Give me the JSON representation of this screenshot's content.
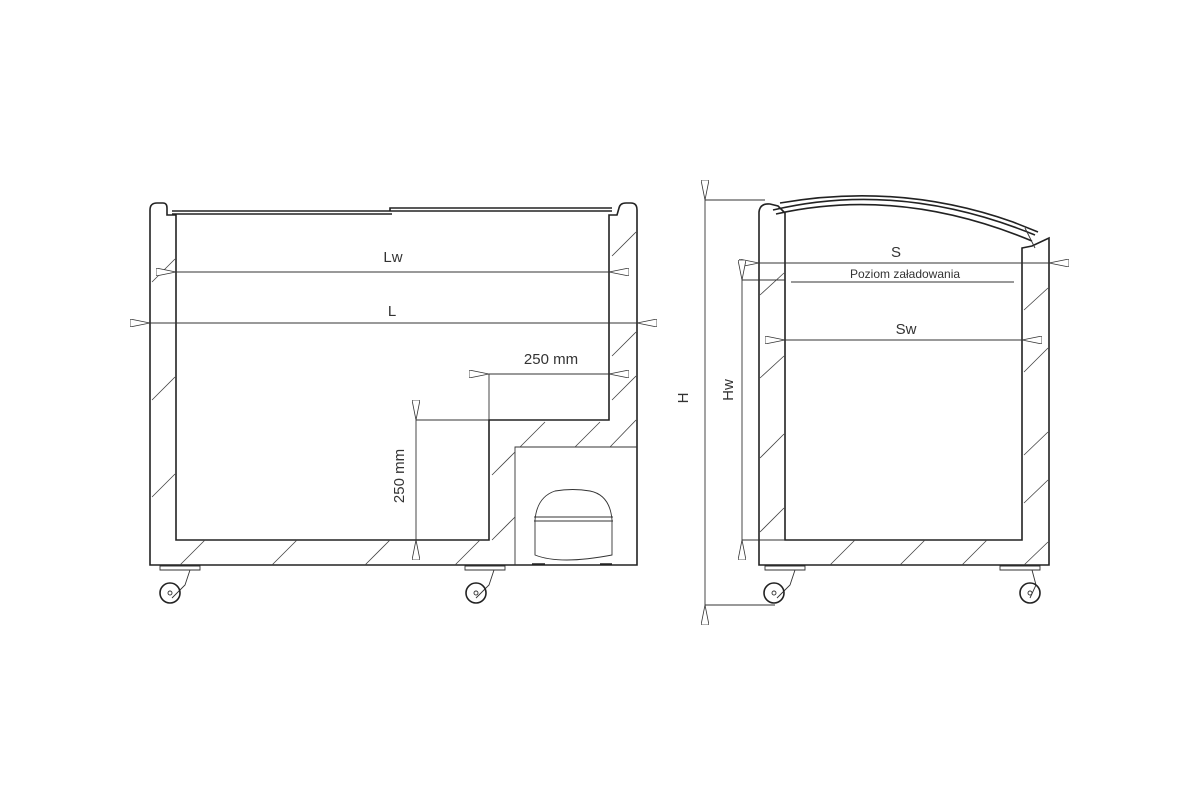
{
  "front_view": {
    "inner_length_label": "Lw",
    "outer_length_label": "L",
    "step_width_label": "250 mm",
    "step_height_label": "250 mm"
  },
  "side_view": {
    "outer_depth_label": "S",
    "loading_level_label": "Poziom załadowania",
    "inner_depth_label": "Sw",
    "outer_height_label": "H",
    "inner_height_label": "Hw"
  }
}
